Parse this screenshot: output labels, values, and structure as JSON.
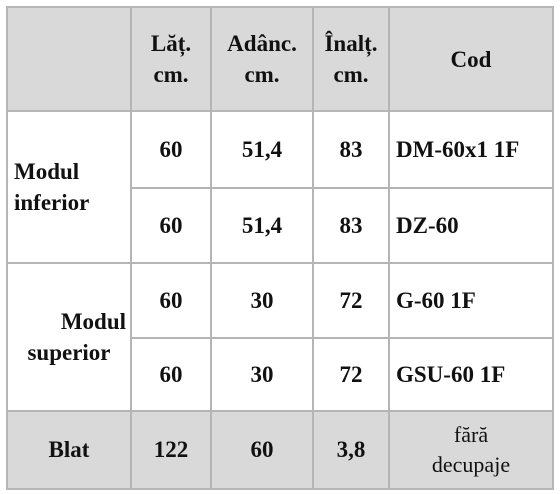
{
  "table": {
    "header": [
      [
        "Lăț.",
        "cm."
      ],
      [
        "Adânc.",
        "cm."
      ],
      [
        "Înalț.",
        "cm."
      ],
      [
        "Cod"
      ]
    ],
    "groups": [
      {
        "label": [
          "Modul",
          "inferior"
        ],
        "rows": [
          [
            "60",
            "51,4",
            "83",
            "DM-60x1 1F"
          ],
          [
            "60",
            "51,4",
            "83",
            "DZ-60"
          ]
        ]
      },
      {
        "label": [
          "Modul",
          "superior"
        ],
        "rows": [
          [
            "60",
            "30",
            "72",
            "G-60 1F"
          ],
          [
            "60",
            "30",
            "72",
            "GSU-60 1F"
          ]
        ]
      }
    ],
    "footer": {
      "label": "Blat",
      "cells": [
        "122",
        "60",
        "3,8"
      ],
      "note": [
        "fără",
        "decupaje"
      ]
    }
  }
}
